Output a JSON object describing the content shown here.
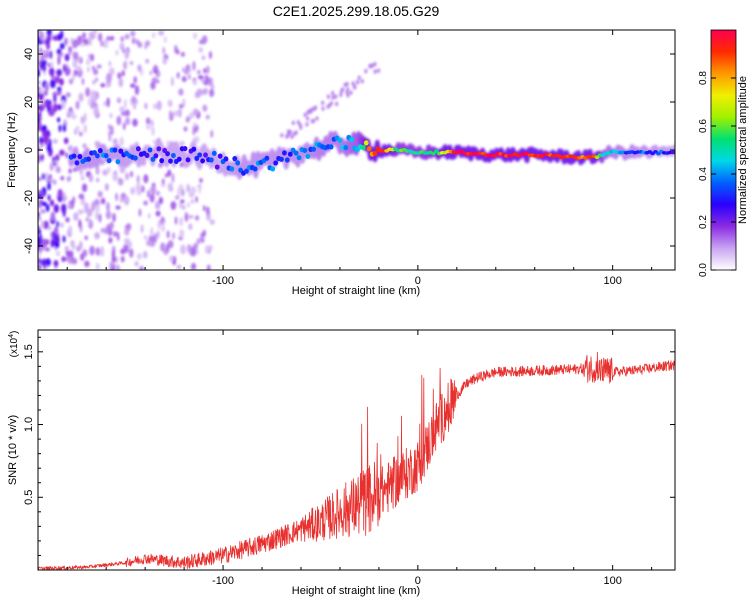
{
  "title": "C2E1.2025.299.18.05.G29",
  "colors": {
    "snr_line": "#e8302e",
    "axis": "#000000",
    "colormap": [
      "#ffffff",
      "#c9a4f2",
      "#8a2be2",
      "#2a00ff",
      "#0060ff",
      "#00d8e8",
      "#00e070",
      "#a0f000",
      "#f0f000",
      "#ff9900",
      "#ff2a00",
      "#ff0050"
    ]
  },
  "chart_data": [
    {
      "type": "heatmap",
      "title": "C2E1.2025.299.18.05.G29",
      "xlabel": "Height of straight line (km)",
      "ylabel": "Frequency (Hz)",
      "xlim": [
        -195,
        132
      ],
      "ylim": [
        -50,
        50
      ],
      "xticks": [
        -100,
        0,
        100
      ],
      "xtick_labels": [
        "-100",
        "0",
        "100"
      ],
      "yticks": [
        -40,
        -20,
        0,
        20,
        40
      ],
      "ytick_labels": [
        "-40",
        "-20",
        "0",
        "20",
        "40"
      ],
      "colorbar": {
        "label": "Normalized spectral amplitude",
        "range": [
          0,
          1
        ],
        "ticks": [
          0.0,
          0.2,
          0.4,
          0.6,
          0.8
        ],
        "tick_labels": [
          "0.0",
          "0.2",
          "0.4",
          "0.6",
          "0.8"
        ]
      },
      "ridge": {
        "x": [
          -195,
          -180,
          -160,
          -140,
          -120,
          -110,
          -100,
          -90,
          -80,
          -70,
          -60,
          -50,
          -40,
          -30,
          -25,
          -20,
          -10,
          0,
          10,
          20,
          40,
          60,
          80,
          90,
          95,
          100,
          132
        ],
        "y": [
          -2,
          -4,
          -3,
          -2,
          -2,
          -3,
          -5,
          -7,
          -6,
          -4,
          -1,
          1,
          3,
          2,
          1,
          0,
          0,
          -1,
          -1,
          -1,
          -2,
          -2,
          -3,
          -3,
          -2,
          -1,
          -1
        ],
        "amplitude": [
          0.1,
          0.35,
          0.35,
          0.3,
          0.3,
          0.3,
          0.3,
          0.35,
          0.35,
          0.35,
          0.35,
          0.4,
          0.4,
          0.5,
          0.8,
          0.95,
          0.55,
          0.55,
          0.6,
          0.95,
          0.95,
          0.95,
          0.9,
          0.85,
          0.5,
          0.4,
          0.3
        ]
      }
    },
    {
      "type": "line",
      "xlabel": "Height of straight line (km)",
      "ylabel": "SNR (10 * v/v)",
      "y_multiplier": "(x10",
      "y_exponent": "4",
      "y_multiplier_close": ")",
      "xlim": [
        -195,
        132
      ],
      "ylim": [
        0,
        1.65
      ],
      "xticks": [
        -100,
        0,
        100
      ],
      "xtick_labels": [
        "-100",
        "0",
        "100"
      ],
      "yticks": [
        0.5,
        1.0,
        1.5
      ],
      "ytick_labels": [
        "0.5",
        "1.0",
        "1.5"
      ],
      "series": [
        {
          "name": "SNR",
          "x": [
            -195,
            -170,
            -150,
            -140,
            -120,
            -100,
            -80,
            -60,
            -50,
            -40,
            -30,
            -20,
            -10,
            0,
            5,
            10,
            15,
            20,
            25,
            30,
            40,
            60,
            80,
            90,
            95,
            100,
            110,
            132
          ],
          "y": [
            0.01,
            0.02,
            0.05,
            0.08,
            0.05,
            0.1,
            0.18,
            0.28,
            0.33,
            0.4,
            0.45,
            0.52,
            0.62,
            0.72,
            0.85,
            1.0,
            1.1,
            1.2,
            1.28,
            1.32,
            1.36,
            1.37,
            1.38,
            1.39,
            1.37,
            1.36,
            1.37,
            1.41
          ]
        }
      ]
    }
  ]
}
